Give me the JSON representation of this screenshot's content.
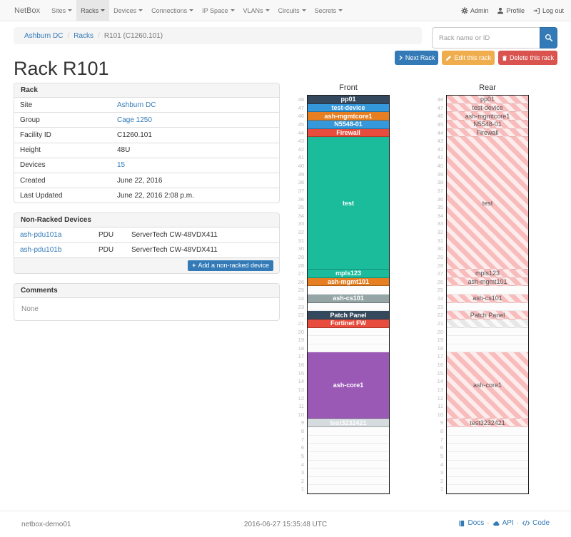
{
  "navbar": {
    "brand": "NetBox",
    "items": [
      {
        "label": "Sites",
        "active": false
      },
      {
        "label": "Racks",
        "active": true
      },
      {
        "label": "Devices",
        "active": false
      },
      {
        "label": "Connections",
        "active": false
      },
      {
        "label": "IP Space",
        "active": false
      },
      {
        "label": "VLANs",
        "active": false
      },
      {
        "label": "Circuits",
        "active": false
      },
      {
        "label": "Secrets",
        "active": false
      }
    ],
    "right": [
      {
        "icon": "gear-icon",
        "label": "Admin"
      },
      {
        "icon": "user-icon",
        "label": "Profile"
      },
      {
        "icon": "log-out-icon",
        "label": "Log out"
      }
    ]
  },
  "breadcrumb": {
    "items": [
      {
        "label": "Ashburn DC",
        "link": true
      },
      {
        "label": "Racks",
        "link": true
      },
      {
        "label": "R101 (C1260.101)",
        "link": false
      }
    ]
  },
  "search": {
    "placeholder": "Rack name or ID"
  },
  "actions": [
    {
      "icon": "chevron-right-icon",
      "label": "Next Rack",
      "style": "primary"
    },
    {
      "icon": "pencil-icon",
      "label": "Edit this rack",
      "style": "warning"
    },
    {
      "icon": "trash-icon",
      "label": "Delete this rack",
      "style": "danger"
    }
  ],
  "title": "Rack R101",
  "rack_panel": {
    "title": "Rack",
    "rows": [
      {
        "label": "Site",
        "value": "Ashburn DC",
        "link": true
      },
      {
        "label": "Group",
        "value": "Cage 1250",
        "link": true
      },
      {
        "label": "Facility ID",
        "value": "C1260.101",
        "link": false
      },
      {
        "label": "Height",
        "value": "48U",
        "link": false
      },
      {
        "label": "Devices",
        "value": "15",
        "link": true
      },
      {
        "label": "Created",
        "value": "June 22, 2016",
        "link": false
      },
      {
        "label": "Last Updated",
        "value": "June 22, 2016 2:08 p.m.",
        "link": false
      }
    ]
  },
  "nonracked_panel": {
    "title": "Non-Racked Devices",
    "rows": [
      {
        "name": "ash-pdu101a",
        "role": "PDU",
        "type": "ServerTech CW-48VDX411"
      },
      {
        "name": "ash-pdu101b",
        "role": "PDU",
        "type": "ServerTech CW-48VDX411"
      }
    ],
    "add_label": "Add a non-racked device"
  },
  "comments_panel": {
    "title": "Comments",
    "body": "None"
  },
  "elevations": {
    "front_title": "Front",
    "rear_title": "Rear",
    "units_total": 48,
    "devices": [
      {
        "top_unit": 48,
        "span": 1,
        "label": "pp01",
        "color": "#34495e"
      },
      {
        "top_unit": 47,
        "span": 1,
        "label": "test-device",
        "color": "#3498db"
      },
      {
        "top_unit": 46,
        "span": 1,
        "label": "ash-mgmtcore1",
        "color": "#e67e22"
      },
      {
        "top_unit": 45,
        "span": 1,
        "label": "N5548-01",
        "color": "#3498db"
      },
      {
        "top_unit": 44,
        "span": 1,
        "label": "Firewall",
        "color": "#e74c3c"
      },
      {
        "top_unit": 43,
        "span": 16,
        "label": "test",
        "color": "#1abc9c"
      },
      {
        "top_unit": 27,
        "span": 1,
        "label": "mpls123",
        "color": "#1abc9c"
      },
      {
        "top_unit": 26,
        "span": 1,
        "label": "ash-mgmt101",
        "color": "#e67e22"
      },
      {
        "top_unit": 24,
        "span": 1,
        "label": "ash-cs101",
        "color": "#95a5a6"
      },
      {
        "top_unit": 22,
        "span": 1,
        "label": "Patch Panel",
        "color": "#34495e"
      },
      {
        "top_unit": 21,
        "span": 1,
        "label": "Fortinet FW",
        "color": "#e74c3c",
        "rear_ghost": true
      },
      {
        "top_unit": 17,
        "span": 8,
        "label": "ash-core1",
        "color": "#9b59b6"
      },
      {
        "top_unit": 9,
        "span": 1,
        "label": "test3232421",
        "color": "#d6dbdf"
      }
    ]
  },
  "footer": {
    "hostname": "netbox-demo01",
    "timestamp": "2016-06-27 15:35:48 UTC",
    "links": [
      {
        "icon": "book-icon",
        "label": "Docs"
      },
      {
        "icon": "cloud-icon",
        "label": "API"
      },
      {
        "icon": "code-icon",
        "label": "Code"
      }
    ]
  }
}
